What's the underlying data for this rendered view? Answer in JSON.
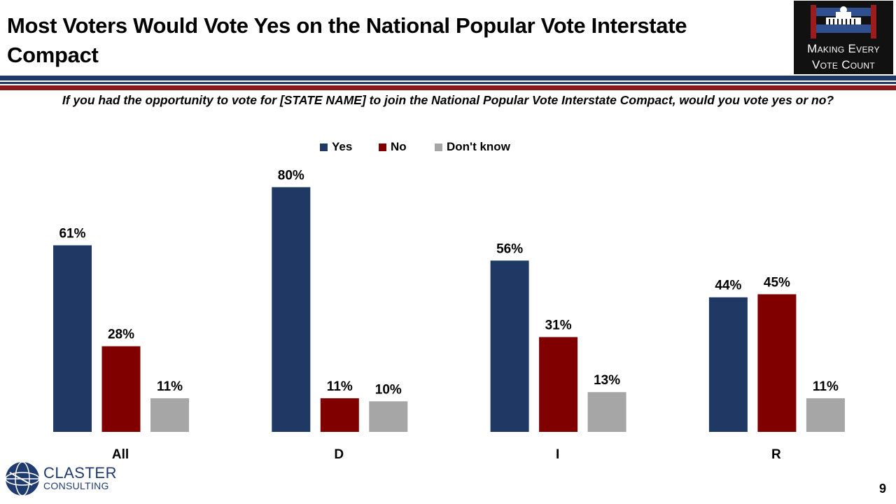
{
  "slide": {
    "title": "Most Voters Would Vote Yes on the National Popular Vote Interstate Compact",
    "question": "If you had the opportunity  to vote for [STATE NAME] to join the National Popular Vote Interstate Compact, would you vote yes or no?",
    "page_number": "9"
  },
  "logos": {
    "mevc_line1": "Making Every",
    "mevc_line2": "Vote Count",
    "claster_line1": "CLASTER",
    "claster_line2": "CONSULTING"
  },
  "colors": {
    "yes": "#1f3864",
    "no": "#800000",
    "dont_know": "#a6a6a6",
    "rule_blue": "#1f3864",
    "rule_red": "#8b1a1a"
  },
  "chart_data": {
    "type": "bar",
    "categories": [
      "All",
      "D",
      "I",
      "R"
    ],
    "series": [
      {
        "name": "Yes",
        "values": [
          61,
          80,
          56,
          44
        ],
        "labels": [
          "61%",
          "80%",
          "56%",
          "44%"
        ]
      },
      {
        "name": "No",
        "values": [
          28,
          11,
          31,
          45
        ],
        "labels": [
          "28%",
          "11%",
          "31%",
          "45%"
        ]
      },
      {
        "name": "Don't know",
        "values": [
          11,
          10,
          13,
          11
        ],
        "labels": [
          "11%",
          "10%",
          "13%",
          "11%"
        ]
      }
    ],
    "title": "",
    "xlabel": "",
    "ylabel": "",
    "ylim": [
      0,
      80
    ],
    "grid": false,
    "legend_position": "top-center",
    "value_format": "percent"
  }
}
